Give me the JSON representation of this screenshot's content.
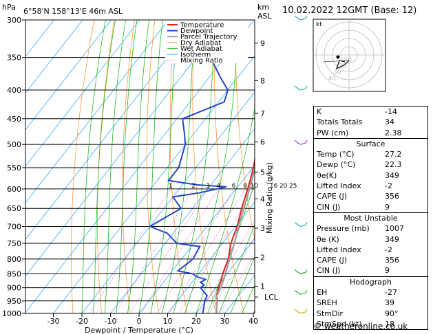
{
  "header": {
    "location": "6°58'N  158°13'E  46m  ASL",
    "datetime": "10.02.2022  12GMT  (Base: 12)",
    "units_left": "hPa",
    "units_right_1": "km",
    "units_right_2": "ASL"
  },
  "chart_data": {
    "type": "line",
    "xlabel": "Dewpoint / Temperature (°C)",
    "ylabel_right": "Mixing Ratio (g/kg)",
    "xlim": [
      -35,
      40
    ],
    "pressure_levels": [
      300,
      350,
      400,
      450,
      500,
      550,
      600,
      650,
      700,
      750,
      800,
      850,
      900,
      950,
      1000
    ],
    "x_ticks": [
      -30,
      -20,
      -10,
      0,
      10,
      20,
      30,
      40
    ],
    "km_ticks": [
      {
        "label": "1",
        "p": 895
      },
      {
        "label": "2",
        "p": 795
      },
      {
        "label": "3",
        "p": 705
      },
      {
        "label": "4",
        "p": 625
      },
      {
        "label": "5",
        "p": 560
      },
      {
        "label": "6",
        "p": 495
      },
      {
        "label": "7",
        "p": 440
      },
      {
        "label": "8",
        "p": 385
      },
      {
        "label": "9",
        "p": 330
      }
    ],
    "lcl": {
      "label": "LCL",
      "p": 935
    },
    "mixing_ratio_labels": [
      "1",
      "2",
      "3",
      "4",
      "6",
      "8",
      "10",
      "16",
      "20",
      "25"
    ],
    "legend": [
      "Temperature",
      "Dewpoint",
      "Parcel Trajectory",
      "Dry Adiabat",
      "Wet Adiabat",
      "Isotherm",
      "Mixing Ratio"
    ],
    "series": [
      {
        "name": "Temperature",
        "color": "#dd2222",
        "points": [
          [
            1000,
            27.2
          ],
          [
            950,
            23.8
          ],
          [
            925,
            22.0
          ],
          [
            900,
            20.8
          ],
          [
            875,
            19.8
          ],
          [
            850,
            18.5
          ],
          [
            830,
            17.6
          ],
          [
            800,
            16.4
          ],
          [
            780,
            15.0
          ],
          [
            750,
            13.0
          ],
          [
            720,
            11.5
          ],
          [
            700,
            10.6
          ],
          [
            650,
            7.2
          ],
          [
            600,
            4.0
          ],
          [
            550,
            0.2
          ],
          [
            500,
            -4.8
          ],
          [
            475,
            -6.0
          ],
          [
            450,
            -8.8
          ],
          [
            400,
            -14.8
          ],
          [
            370,
            -19.6
          ]
        ]
      },
      {
        "name": "Dewpoint",
        "color": "#2244cc",
        "points": [
          [
            1000,
            22.3
          ],
          [
            975,
            21.0
          ],
          [
            950,
            19.5
          ],
          [
            930,
            19.0
          ],
          [
            910,
            16.0
          ],
          [
            900,
            14.5
          ],
          [
            890,
            15.0
          ],
          [
            880,
            13.0
          ],
          [
            870,
            14.0
          ],
          [
            860,
            10.0
          ],
          [
            850,
            8.0
          ],
          [
            840,
            2.0
          ],
          [
            800,
            4.0
          ],
          [
            760,
            3.0
          ],
          [
            750,
            -6.0
          ],
          [
            720,
            -12.0
          ],
          [
            700,
            -20.0
          ],
          [
            650,
            -14.0
          ],
          [
            620,
            -20.0
          ],
          [
            610,
            -12.0
          ],
          [
            595,
            -4.0
          ],
          [
            590,
            -15.0
          ],
          [
            580,
            -26.0
          ],
          [
            550,
            -26.0
          ],
          [
            500,
            -30.0
          ],
          [
            480,
            -33.0
          ],
          [
            450,
            -38.0
          ],
          [
            420,
            -28.0
          ],
          [
            400,
            -30.0
          ],
          [
            380,
            -36.0
          ],
          [
            350,
            -45.0
          ],
          [
            300,
            -55.0
          ]
        ]
      },
      {
        "name": "Parcel Trajectory",
        "color": "#a0a0a0",
        "points": [
          [
            1000,
            27.2
          ],
          [
            935,
            22.5
          ],
          [
            900,
            21.6
          ],
          [
            850,
            19.4
          ],
          [
            800,
            16.8
          ],
          [
            750,
            14.2
          ],
          [
            700,
            11.0
          ],
          [
            650,
            8.0
          ],
          [
            600,
            4.6
          ],
          [
            550,
            0.8
          ],
          [
            500,
            -3.6
          ],
          [
            450,
            -8.8
          ],
          [
            400,
            -15.0
          ]
        ]
      }
    ],
    "hodograph": {
      "label": "kt",
      "rings": [
        "10",
        "20",
        "30",
        "40"
      ]
    }
  },
  "indices": {
    "rows1": [
      {
        "label": "K",
        "value": "-14"
      },
      {
        "label": "Totals Totals",
        "value": "34"
      },
      {
        "label": "PW (cm)",
        "value": "2.38"
      }
    ],
    "surface_title": "Surface",
    "surface": [
      {
        "label": "Temp (°C)",
        "value": "27.2"
      },
      {
        "label": "Dewp (°C)",
        "value": "22.3"
      },
      {
        "label": "θe(K)",
        "value": "349"
      },
      {
        "label": "Lifted Index",
        "value": "-2"
      },
      {
        "label": "CAPE (J)",
        "value": "356"
      },
      {
        "label": "CIN (J)",
        "value": "9"
      }
    ],
    "mu_title": "Most Unstable",
    "mu": [
      {
        "label": "Pressure (mb)",
        "value": "1007"
      },
      {
        "label": "θe (K)",
        "value": "349"
      },
      {
        "label": "Lifted Index",
        "value": "-2"
      },
      {
        "label": "CAPE (J)",
        "value": "356"
      },
      {
        "label": "CIN (J)",
        "value": "9"
      }
    ],
    "hodo_title": "Hodograph",
    "hodo": [
      {
        "label": "EH",
        "value": "-27"
      },
      {
        "label": "SREH",
        "value": "39"
      },
      {
        "label": "StmDir",
        "value": "90°"
      },
      {
        "label": "StmSpd (kt)",
        "value": "18"
      }
    ]
  },
  "footer": "© weatheronline.co.uk"
}
